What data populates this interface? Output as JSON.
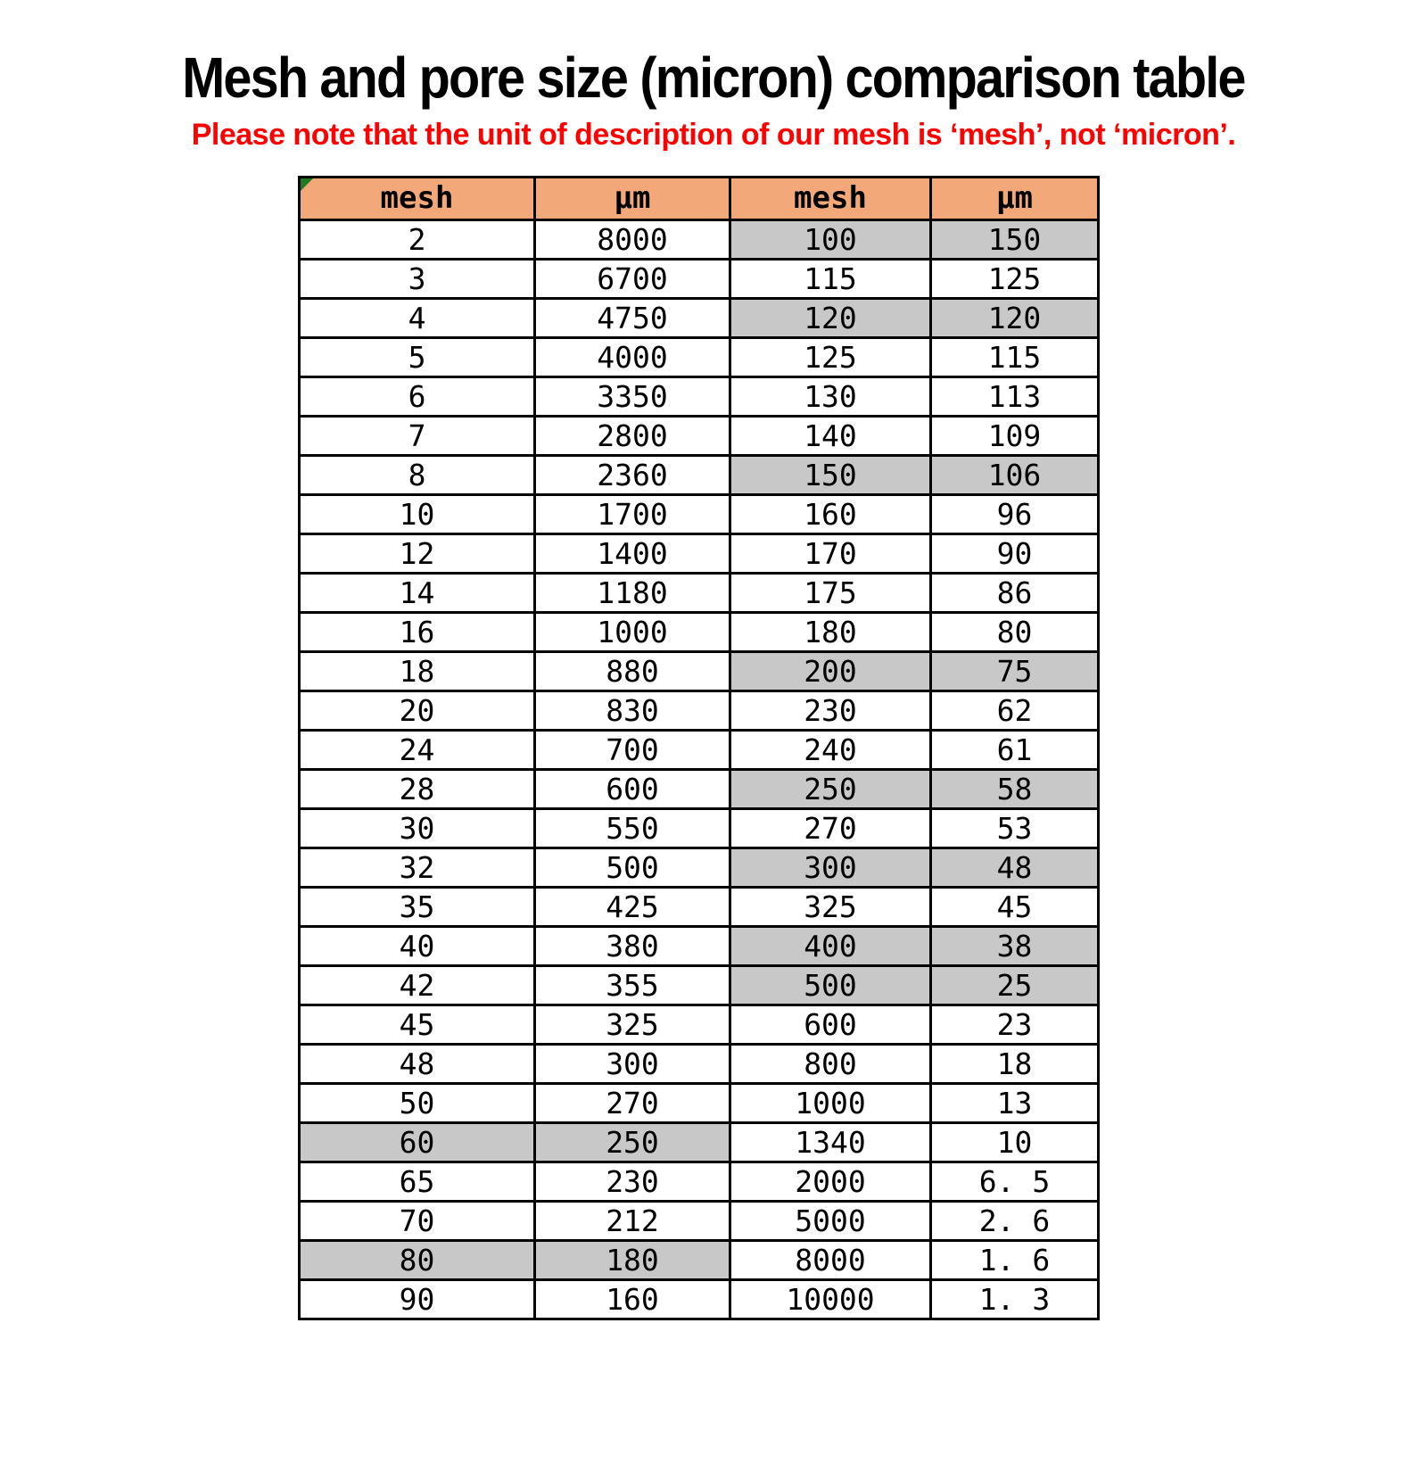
{
  "page": {
    "title": "Mesh and pore size (micron) comparison table",
    "subtitle": "Please note that the unit of description of our mesh is ‘mesh’, not ‘micron’.",
    "subtitle_color": "#ff0000",
    "background": "#ffffff"
  },
  "table": {
    "headers": [
      "mesh",
      "μm",
      "mesh",
      "μm"
    ],
    "header_bg": "#f2a878",
    "highlight_bg": "#c8c8c8",
    "border_color": "#000000",
    "corner_flag_color": "#1e7b21",
    "rows": [
      {
        "cells": [
          "2",
          "8000",
          "100",
          "150"
        ],
        "hl_left": false,
        "hl_right": true
      },
      {
        "cells": [
          "3",
          "6700",
          "115",
          "125"
        ],
        "hl_left": false,
        "hl_right": false
      },
      {
        "cells": [
          "4",
          "4750",
          "120",
          "120"
        ],
        "hl_left": false,
        "hl_right": true
      },
      {
        "cells": [
          "5",
          "4000",
          "125",
          "115"
        ],
        "hl_left": false,
        "hl_right": false
      },
      {
        "cells": [
          "6",
          "3350",
          "130",
          "113"
        ],
        "hl_left": false,
        "hl_right": false
      },
      {
        "cells": [
          "7",
          "2800",
          "140",
          "109"
        ],
        "hl_left": false,
        "hl_right": false
      },
      {
        "cells": [
          "8",
          "2360",
          "150",
          "106"
        ],
        "hl_left": false,
        "hl_right": true
      },
      {
        "cells": [
          "10",
          "1700",
          "160",
          "96"
        ],
        "hl_left": false,
        "hl_right": false
      },
      {
        "cells": [
          "12",
          "1400",
          "170",
          "90"
        ],
        "hl_left": false,
        "hl_right": false
      },
      {
        "cells": [
          "14",
          "1180",
          "175",
          "86"
        ],
        "hl_left": false,
        "hl_right": false
      },
      {
        "cells": [
          "16",
          "1000",
          "180",
          "80"
        ],
        "hl_left": false,
        "hl_right": false
      },
      {
        "cells": [
          "18",
          "880",
          "200",
          "75"
        ],
        "hl_left": false,
        "hl_right": true
      },
      {
        "cells": [
          "20",
          "830",
          "230",
          "62"
        ],
        "hl_left": false,
        "hl_right": false
      },
      {
        "cells": [
          "24",
          "700",
          "240",
          "61"
        ],
        "hl_left": false,
        "hl_right": false
      },
      {
        "cells": [
          "28",
          "600",
          "250",
          "58"
        ],
        "hl_left": false,
        "hl_right": true
      },
      {
        "cells": [
          "30",
          "550",
          "270",
          "53"
        ],
        "hl_left": false,
        "hl_right": false
      },
      {
        "cells": [
          "32",
          "500",
          "300",
          "48"
        ],
        "hl_left": false,
        "hl_right": true
      },
      {
        "cells": [
          "35",
          "425",
          "325",
          "45"
        ],
        "hl_left": false,
        "hl_right": false
      },
      {
        "cells": [
          "40",
          "380",
          "400",
          "38"
        ],
        "hl_left": false,
        "hl_right": true
      },
      {
        "cells": [
          "42",
          "355",
          "500",
          "25"
        ],
        "hl_left": false,
        "hl_right": true
      },
      {
        "cells": [
          "45",
          "325",
          "600",
          "23"
        ],
        "hl_left": false,
        "hl_right": false
      },
      {
        "cells": [
          "48",
          "300",
          "800",
          "18"
        ],
        "hl_left": false,
        "hl_right": false
      },
      {
        "cells": [
          "50",
          "270",
          "1000",
          "13"
        ],
        "hl_left": false,
        "hl_right": false
      },
      {
        "cells": [
          "60",
          "250",
          "1340",
          "10"
        ],
        "hl_left": true,
        "hl_right": false
      },
      {
        "cells": [
          "65",
          "230",
          "2000",
          "6. 5"
        ],
        "hl_left": false,
        "hl_right": false
      },
      {
        "cells": [
          "70",
          "212",
          "5000",
          "2. 6"
        ],
        "hl_left": false,
        "hl_right": false
      },
      {
        "cells": [
          "80",
          "180",
          "8000",
          "1. 6"
        ],
        "hl_left": true,
        "hl_right": false
      },
      {
        "cells": [
          "90",
          "160",
          "10000",
          "1. 3"
        ],
        "hl_left": false,
        "hl_right": false
      }
    ]
  }
}
